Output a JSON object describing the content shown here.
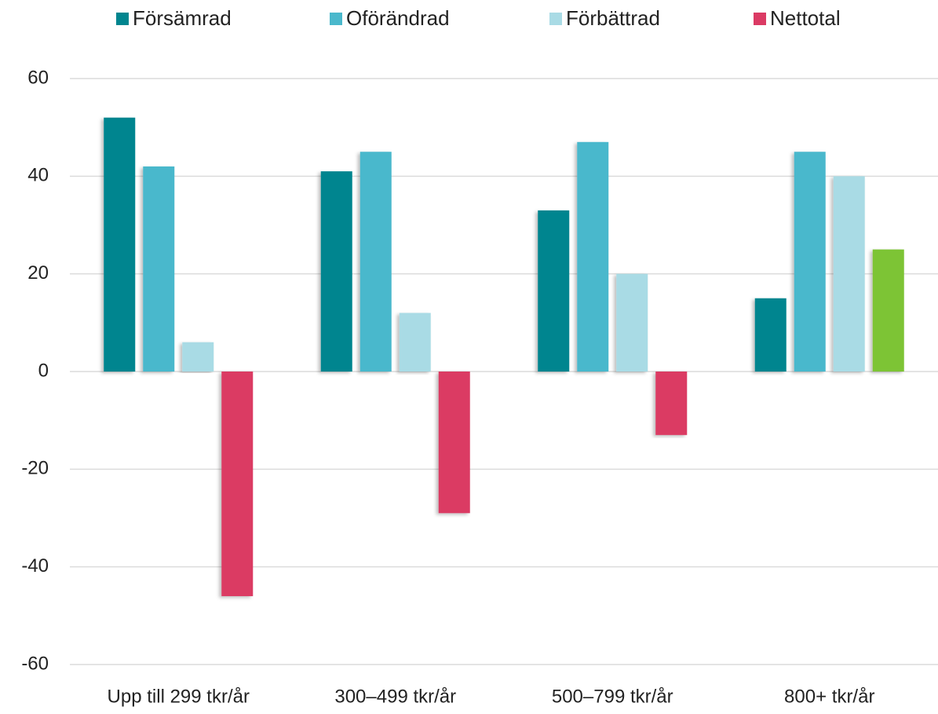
{
  "chart_data": {
    "type": "bar",
    "categories": [
      "Upp till 299 tkr/år",
      "300–499 tkr/år",
      "500–799 tkr/år",
      "800+ tkr/år"
    ],
    "series": [
      {
        "name": "Försämrad",
        "color": "#00858f",
        "values": [
          52,
          41,
          33,
          15
        ]
      },
      {
        "name": "Oförändrad",
        "color": "#4ab8cc",
        "values": [
          42,
          45,
          47,
          45
        ]
      },
      {
        "name": "Förbättrad",
        "color": "#a9dbe5",
        "values": [
          6,
          12,
          20,
          40
        ]
      },
      {
        "name": "Nettotal",
        "color": "#db3a64",
        "colors": [
          "#db3a64",
          "#db3a64",
          "#db3a64",
          "#7dc434"
        ],
        "values": [
          -46,
          -29,
          -13,
          25
        ]
      }
    ],
    "ylim": [
      -60,
      60
    ],
    "yticks": [
      -60,
      -40,
      -20,
      0,
      20,
      40,
      60
    ],
    "grid": true,
    "legend": "top"
  }
}
